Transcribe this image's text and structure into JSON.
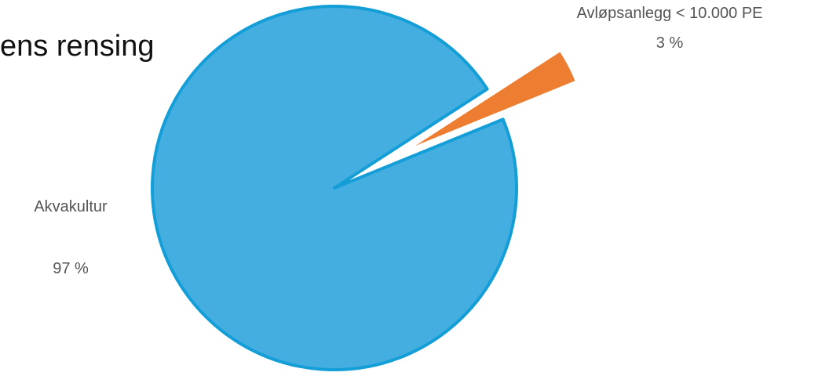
{
  "chart_data": {
    "type": "pie",
    "title_fragment": "ens rensing",
    "slices": [
      {
        "label": "Akvakultur",
        "value": 97,
        "display": "97 %",
        "color": "#45AEE0",
        "stroke": "#139ED8"
      },
      {
        "label": "Avløpsanlegg < 10.000 PE",
        "value": 3,
        "display": "3 %",
        "color": "#ED7D31",
        "stroke": "#ffffff",
        "exploded": true
      }
    ]
  }
}
